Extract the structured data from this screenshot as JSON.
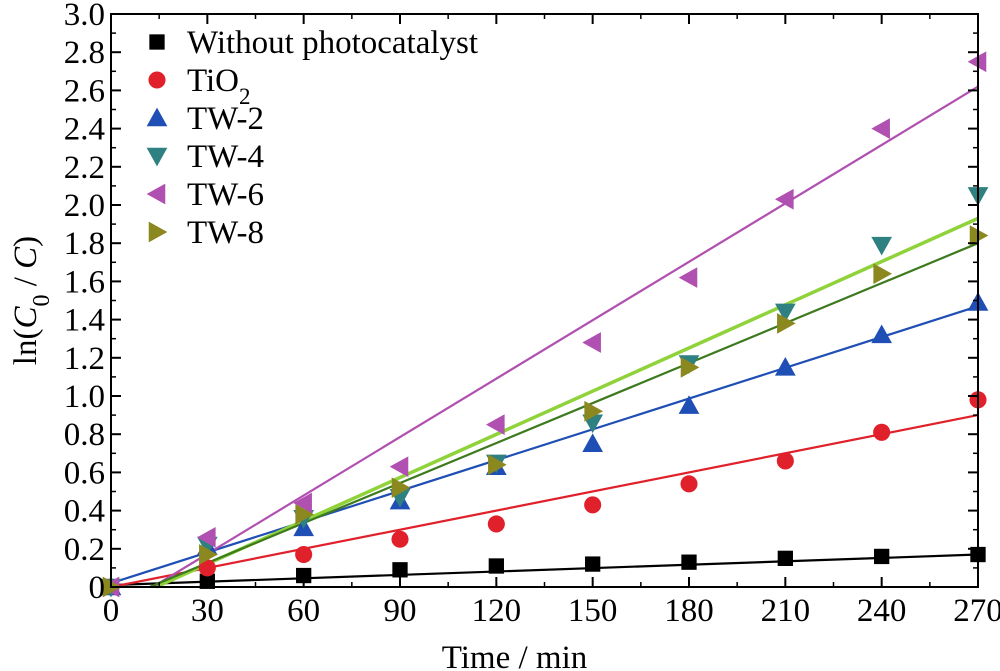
{
  "chart_data": {
    "type": "scatter",
    "xlabel": "Time / min",
    "ylabel": "ln(C0 / C)",
    "xlim": [
      0,
      270
    ],
    "ylim": [
      0,
      3.0
    ],
    "x_ticks": [
      "0",
      "30",
      "60",
      "90",
      "120",
      "150",
      "180",
      "210",
      "240",
      "270"
    ],
    "y_ticks": [
      "0",
      "0.2",
      "0.4",
      "0.6",
      "0.8",
      "1.0",
      "1.2",
      "1.4",
      "1.6",
      "1.8",
      "2.0",
      "2.2",
      "2.4",
      "2.6",
      "2.8",
      "3.0"
    ],
    "grid": false,
    "legend_position": "top-left",
    "x": [
      0,
      30,
      60,
      90,
      120,
      150,
      180,
      210,
      240,
      270
    ],
    "series": [
      {
        "name": "Without photocatalyst",
        "marker": "square",
        "color": "#000000",
        "values": [
          0,
          0.03,
          0.06,
          0.09,
          0.11,
          0.12,
          0.13,
          0.15,
          0.16,
          0.17
        ],
        "fit": {
          "x": [
            0,
            270
          ],
          "y": [
            0.01,
            0.17
          ]
        }
      },
      {
        "name": "TiO2",
        "marker": "circle",
        "color": "#e0202a",
        "values": [
          0,
          0.1,
          0.17,
          0.25,
          0.33,
          0.43,
          0.54,
          0.66,
          0.81,
          0.98
        ],
        "fit": {
          "x": [
            0,
            270
          ],
          "y": [
            0,
            0.9
          ]
        }
      },
      {
        "name": "TW-2",
        "marker": "triangle-up",
        "color": "#1f4fb5",
        "values": [
          0,
          0.21,
          0.31,
          0.45,
          0.63,
          0.75,
          0.95,
          1.15,
          1.32,
          1.49
        ],
        "fit": {
          "x": [
            0,
            270
          ],
          "y": [
            0.02,
            1.47
          ]
        }
      },
      {
        "name": "TW-4",
        "marker": "triangle-down",
        "color": "#2f8080",
        "values": [
          0,
          0.22,
          0.36,
          0.47,
          0.65,
          0.86,
          1.17,
          1.44,
          1.79,
          2.05
        ],
        "fit": {
          "x": [
            14,
            270
          ],
          "y": [
            0,
            1.93
          ]
        }
      },
      {
        "name": "TW-6",
        "marker": "triangle-left",
        "color": "#b050b0",
        "values": [
          0,
          0.26,
          0.44,
          0.63,
          0.85,
          1.28,
          1.62,
          2.03,
          2.4,
          2.75
        ],
        "fit": {
          "x": [
            13,
            270
          ],
          "y": [
            0,
            2.62
          ]
        }
      },
      {
        "name": "TW-8",
        "marker": "triangle-right",
        "color": "#8c8820",
        "values": [
          0,
          0.17,
          0.38,
          0.52,
          0.64,
          0.92,
          1.15,
          1.38,
          1.64,
          1.84
        ],
        "fit": {
          "x": [
            12,
            270
          ],
          "y": [
            0,
            1.8
          ]
        }
      }
    ],
    "fit_colors": {
      "Without photocatalyst": "#000000",
      "TiO2": "#e0202a",
      "TW-2": "#1f4fb5",
      "TW-4": "#8fd23a",
      "TW-6": "#b050b0",
      "TW-8": "#3d7a1e"
    }
  }
}
